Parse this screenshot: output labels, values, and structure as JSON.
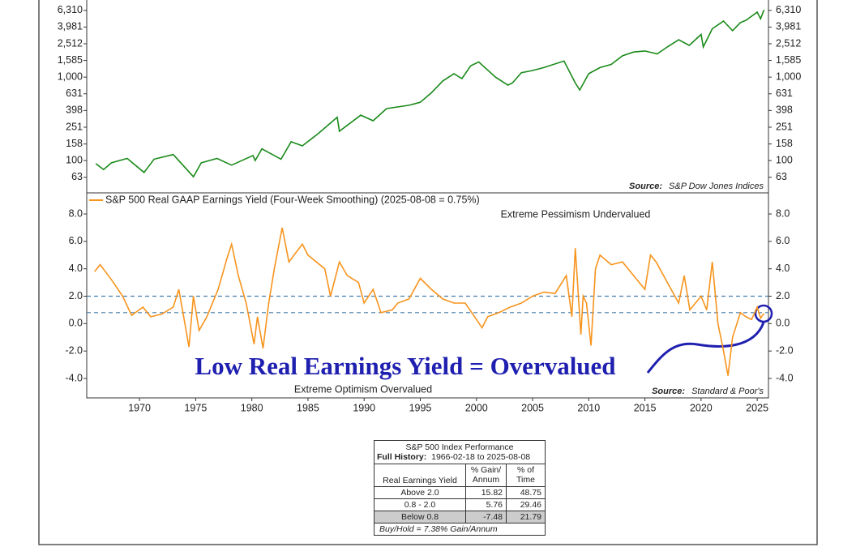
{
  "chart_data": [
    {
      "type": "line",
      "yscale": "log",
      "x": [
        1966.1,
        1966.8,
        1967.5,
        1968.9,
        1970.4,
        1971.3,
        1973.0,
        1974.8,
        1975.5,
        1976.9,
        1978.2,
        1980.1,
        1980.3,
        1980.9,
        1982.6,
        1983.5,
        1984.5,
        1985.9,
        1987.6,
        1987.8,
        1989.7,
        1990.8,
        1992.0,
        1994.0,
        1995.0,
        1996.0,
        1997.0,
        1998.0,
        1998.7,
        1999.5,
        2000.2,
        2001.7,
        2002.8,
        2003.2,
        2004.0,
        2005.0,
        2006.0,
        2007.8,
        2008.8,
        2009.2,
        2010.0,
        2011.0,
        2012.0,
        2013.0,
        2014.0,
        2015.0,
        2016.1,
        2017.0,
        2018.0,
        2018.95,
        2020.0,
        2020.2,
        2021.0,
        2022.0,
        2022.8,
        2023.5,
        2024.0,
        2025.0,
        2025.3,
        2025.6
      ],
      "series": [
        {
          "color": "#1a8a1a",
          "values": [
            92,
            78,
            94,
            106,
            72,
            104,
            118,
            64,
            94,
            106,
            88,
            115,
            100,
            138,
            104,
            168,
            150,
            210,
            330,
            225,
            350,
            300,
            420,
            460,
            500,
            650,
            900,
            1100,
            960,
            1370,
            1520,
            1000,
            800,
            850,
            1130,
            1200,
            1300,
            1560,
            850,
            700,
            1100,
            1300,
            1420,
            1800,
            2000,
            2060,
            1900,
            2300,
            2800,
            2400,
            3250,
            2300,
            3800,
            4700,
            3600,
            4500,
            4800,
            6000,
            5000,
            6389
          ]
        }
      ],
      "xlim": [
        1965.3,
        2026.0
      ],
      "ylim": [
        41,
        8400
      ],
      "yticks": [
        63,
        100,
        158,
        251,
        398,
        631,
        {
          "value": 1000,
          "label": "1,000"
        },
        {
          "value": 1585,
          "label": "1,585"
        },
        {
          "value": 2512,
          "label": "2,512"
        },
        {
          "value": 3981,
          "label": "3,981"
        },
        {
          "value": 6310,
          "label": "6,310"
        }
      ],
      "source_label": "Source:",
      "source": "S&P Dow Jones Indices"
    },
    {
      "type": "line",
      "x": [
        1966.0,
        1966.5,
        1967.5,
        1968.5,
        1969.3,
        1970.3,
        1971.0,
        1972.0,
        1973.0,
        1973.5,
        1974.0,
        1974.4,
        1974.8,
        1975.3,
        1976.0,
        1977.0,
        1977.8,
        1978.2,
        1978.8,
        1979.5,
        1980.2,
        1980.5,
        1981.0,
        1981.5,
        1982.0,
        1982.7,
        1983.3,
        1984.5,
        1985.0,
        1986.5,
        1987.0,
        1987.8,
        1988.5,
        1989.5,
        1990.0,
        1990.8,
        1991.5,
        1992.5,
        1993.0,
        1994.0,
        1995.0,
        1996.0,
        1997.0,
        1998.0,
        1999.0,
        2000.0,
        2000.5,
        2001.0,
        2002.0,
        2003.0,
        2004.0,
        2005.0,
        2006.0,
        2007.0,
        2008.0,
        2008.5,
        2008.8,
        2009.3,
        2009.5,
        2009.8,
        2010.2,
        2010.6,
        2011.0,
        2012.0,
        2013.0,
        2014.0,
        2015.0,
        2015.5,
        2016.0,
        2017.0,
        2018.0,
        2018.5,
        2019.0,
        2020.0,
        2020.5,
        2021.0,
        2021.5,
        2022.0,
        2022.4,
        2022.8,
        2023.5,
        2024.0,
        2024.5,
        2025.0,
        2025.3,
        2025.6
      ],
      "series": [
        {
          "name": "S&P 500 Real GAAP Earnings Yield (Four-Week Smoothing) (2025-08-08 = 0.75%)",
          "color": "#f7941d",
          "values": [
            3.8,
            4.3,
            3.2,
            2.0,
            0.6,
            1.2,
            0.5,
            0.7,
            1.2,
            2.5,
            0.2,
            -1.7,
            2.0,
            -0.5,
            0.5,
            2.5,
            4.8,
            5.8,
            3.5,
            1.5,
            -1.5,
            0.5,
            -1.8,
            1.5,
            4.0,
            7.0,
            4.5,
            5.8,
            5.0,
            4.0,
            2.0,
            4.5,
            3.5,
            3.0,
            1.5,
            2.5,
            0.8,
            1.0,
            1.5,
            1.8,
            3.3,
            2.5,
            1.8,
            1.5,
            1.5,
            0.3,
            -0.3,
            0.5,
            0.8,
            1.2,
            1.5,
            2.0,
            2.3,
            2.2,
            3.5,
            0.5,
            5.5,
            -0.8,
            2.0,
            1.5,
            -1.6,
            4.0,
            5.0,
            4.3,
            4.5,
            3.5,
            2.5,
            5.0,
            4.5,
            3.0,
            1.5,
            3.5,
            1.0,
            2.0,
            1.0,
            4.5,
            0,
            -2.0,
            -3.8,
            -1.0,
            0.8,
            0.5,
            0.3,
            1.2,
            0.4,
            0.75
          ]
        }
      ],
      "reference_lines": [
        2.0,
        0.8
      ],
      "xlim": [
        1965.3,
        2026.0
      ],
      "ylim": [
        -5.42,
        9.54
      ],
      "xticks": [
        1970,
        1975,
        1980,
        1985,
        1990,
        1995,
        2000,
        2005,
        2010,
        2015,
        2020,
        2025
      ],
      "yticks": [
        {
          "value": -4,
          "label": "-4.0"
        },
        {
          "value": -2,
          "label": "-2.0"
        },
        {
          "value": 0,
          "label": "0.0"
        },
        {
          "value": 2,
          "label": "2.0"
        },
        {
          "value": 4,
          "label": "4.0"
        },
        {
          "value": 6,
          "label": "6.0"
        },
        {
          "value": 8,
          "label": "8.0"
        }
      ],
      "annotations": [
        "Extreme Pessimism Undervalued",
        "Extreme Optimism Overvalued"
      ],
      "callout": "Low Real Earnings Yield = Overvalued",
      "source_label": "Source:",
      "source": "Standard & Poor's"
    }
  ],
  "table": {
    "title": "S&P 500 Index Performance",
    "history_label": "Full History:",
    "history": "1966-02-18 to 2025-08-08",
    "header": [
      "Real Earnings Yield",
      "% Gain/ Annum",
      "% of Time"
    ],
    "rows": [
      [
        "Above 2.0",
        "15.82",
        "48.75"
      ],
      [
        "0.8 - 2.0",
        "5.76",
        "29.46"
      ],
      [
        "Below 0.8",
        "-7.48",
        "21.79"
      ]
    ],
    "footer": "Buy/Hold = 7.38% Gain/Annum"
  }
}
